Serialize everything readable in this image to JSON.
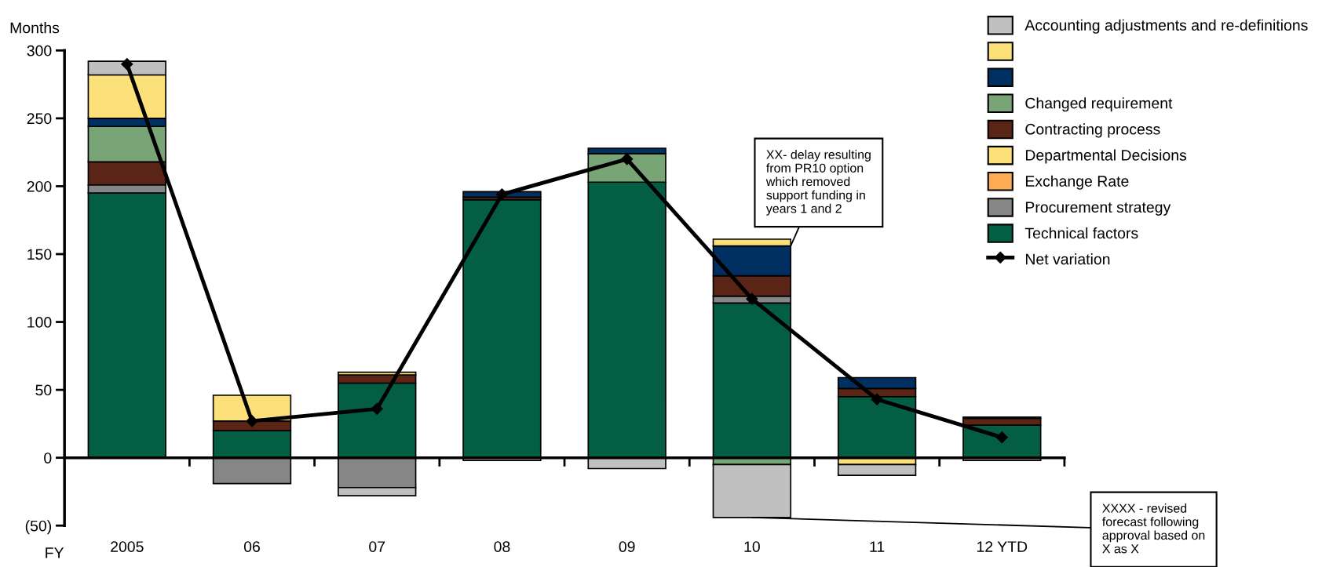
{
  "chart_data": {
    "type": "bar",
    "stacked": true,
    "ylabel": "Months",
    "xlabel": "FY",
    "categories": [
      "2005",
      "06",
      "07",
      "08",
      "09",
      "10",
      "11",
      "12 YTD"
    ],
    "ylim": [
      -50,
      300
    ],
    "yticks": [
      {
        "value": -50,
        "label": "(50)"
      },
      0,
      50,
      100,
      150,
      200,
      250,
      300
    ],
    "legend": "top right",
    "series": [
      {
        "name": "Technical factors",
        "color": "#035e43",
        "values": [
          195,
          20,
          55,
          190,
          203,
          114,
          45,
          24
        ]
      },
      {
        "name": "Procurement strategy",
        "color": "#868686",
        "values": [
          6,
          -19,
          -22,
          null,
          null,
          5,
          null,
          null
        ]
      },
      {
        "name": "Exchange Rate",
        "color": "#ffaa55",
        "values": [
          null,
          null,
          null,
          null,
          null,
          null,
          null,
          null
        ]
      },
      {
        "name": "Departmental Decisions",
        "color": "#fce17a",
        "values": [
          null,
          null,
          null,
          null,
          null,
          null,
          null,
          null
        ]
      },
      {
        "name": "Contracting process",
        "color": "#5a2516",
        "values": [
          17,
          7,
          6,
          2,
          null,
          15,
          6,
          5
        ]
      },
      {
        "name": "Changed requirement",
        "color": "#78a476",
        "values": [
          26,
          null,
          null,
          null,
          21,
          -5,
          null,
          null
        ]
      },
      {
        "color": "#002f62",
        "values": [
          6,
          null,
          null,
          4,
          4,
          22,
          8,
          1
        ]
      },
      {
        "color": "#fce17a",
        "values": [
          32,
          19,
          2,
          null,
          null,
          5,
          -5,
          null
        ]
      },
      {
        "name": "Accounting adjustments and re-definitions",
        "color": "#c0c0c0",
        "values": [
          10,
          null,
          -6,
          -2,
          -8,
          -39,
          -8,
          -2
        ]
      },
      {
        "name": "Net variation",
        "type": "line",
        "color": "#000000",
        "marker": "diamond",
        "values": [
          290,
          27,
          36,
          194,
          220,
          117,
          43,
          15
        ]
      }
    ],
    "annotations": [
      {
        "text": "XX- delay resulting\nfrom PR10 option\nwhich removed\nsupport funding in\nyears 1 and 2",
        "x": "10",
        "y": 156
      },
      {
        "text": "XXXX - revised\nforecast following\napproval based on\nX as X",
        "x": "10",
        "y": -44
      }
    ]
  }
}
